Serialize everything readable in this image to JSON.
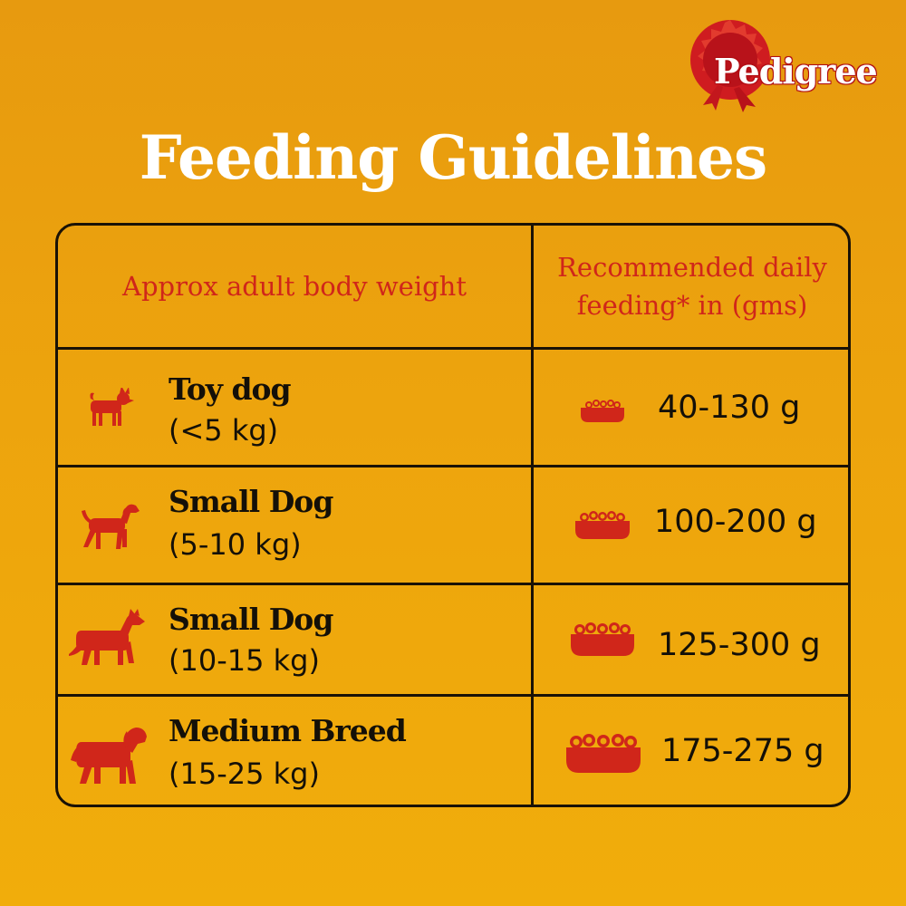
{
  "brand": {
    "logo_text": "Pedigree",
    "color": "#d0261a"
  },
  "title": "Feeding Guidelines",
  "table": {
    "header_left": "Approx adult body weight",
    "header_right_line1": "Recommended daily",
    "header_right_line2": "feeding* in (gms)",
    "rows": [
      {
        "breed": "Toy dog",
        "weight": "(<5 kg)",
        "amount": "40-130 g",
        "dog_icon": "toy-dog-icon",
        "bowl_icon": "small-bowl-icon"
      },
      {
        "breed": "Small Dog",
        "weight": "(5-10 kg)",
        "amount": "100-200 g",
        "dog_icon": "small-dog-icon",
        "bowl_icon": "medium-bowl-icon"
      },
      {
        "breed": "Small Dog",
        "weight": "(10-15 kg)",
        "amount": "125-300 g",
        "dog_icon": "husky-dog-icon",
        "bowl_icon": "large-bowl-icon"
      },
      {
        "breed": "Medium Breed",
        "weight": "(15-25 kg)",
        "amount": "175-275 g",
        "dog_icon": "medium-breed-dog-icon",
        "bowl_icon": "extra-large-bowl-icon"
      }
    ]
  },
  "colors": {
    "background": "#eda40d",
    "icon_red": "#d0261a",
    "text_dark": "#141008",
    "border": "#1a1206"
  }
}
